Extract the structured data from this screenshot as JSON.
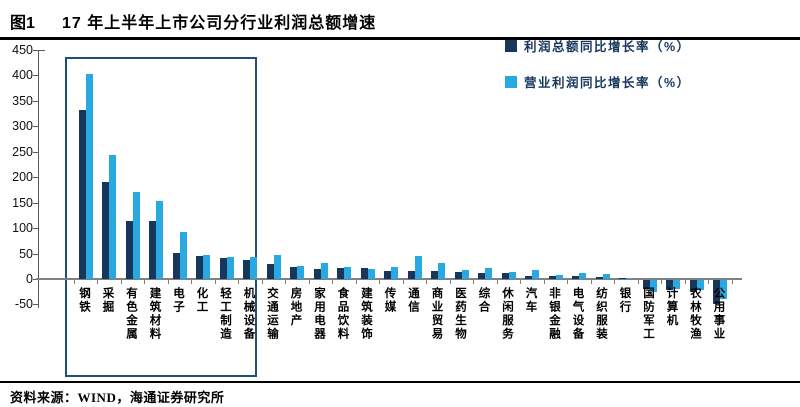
{
  "header": {
    "fig_label": "图1",
    "title": "17 年上半年上市公司分行业利润总额增速"
  },
  "footer": {
    "source": "资料来源：WIND，海通证券研究所"
  },
  "colors": {
    "profit_total_bar": "#16365C",
    "operating_profit_bar": "#29A9E2",
    "legend_text": "#16365C",
    "highlight_box": "#1F4E79",
    "axis_line": "#595959",
    "baseline": "#808080",
    "text": "#000000"
  },
  "chart_data": {
    "type": "bar",
    "title": "17 年上半年上市公司分行业利润总额增速",
    "categories": [
      "钢铁",
      "采掘",
      "有色金属",
      "建筑材料",
      "电子",
      "化工",
      "轻工制造",
      "机械设备",
      "交通运输",
      "房地产",
      "家用电器",
      "食品饮料",
      "建筑装饰",
      "传媒",
      "通信",
      "商业贸易",
      "医药生物",
      "综合",
      "休闲服务",
      "汽车",
      "非银金融",
      "电气设备",
      "纺织服装",
      "银行",
      "国防军工",
      "计算机",
      "农林牧渔",
      "公用事业"
    ],
    "series": [
      {
        "name": "利润总额同比增长率（%）",
        "color": "#16365C",
        "values": [
          332,
          191,
          113,
          113,
          52,
          46,
          41,
          38,
          30,
          24,
          19,
          21,
          21,
          16,
          15,
          16,
          14,
          12,
          11,
          6,
          5,
          5,
          4,
          1,
          -17,
          -20,
          -24,
          -47
        ]
      },
      {
        "name": "营业利润同比增长率（%）",
        "color": "#29A9E2",
        "values": [
          402,
          243,
          170,
          154,
          93,
          48,
          44,
          44,
          47,
          26,
          31,
          23,
          19,
          24,
          45,
          32,
          18,
          21,
          13,
          18,
          8,
          11,
          10,
          2,
          -24,
          -17,
          -20,
          -37
        ]
      }
    ],
    "ylabel": "",
    "xlabel": "",
    "ylim": [
      -50,
      450
    ],
    "ytick_step": 50,
    "yticks": [
      450,
      400,
      350,
      300,
      250,
      200,
      150,
      100,
      50,
      0,
      -50
    ],
    "grid": false,
    "legend_position": "top-right",
    "highlight_box_categories": [
      "钢铁",
      "机械设备"
    ]
  }
}
